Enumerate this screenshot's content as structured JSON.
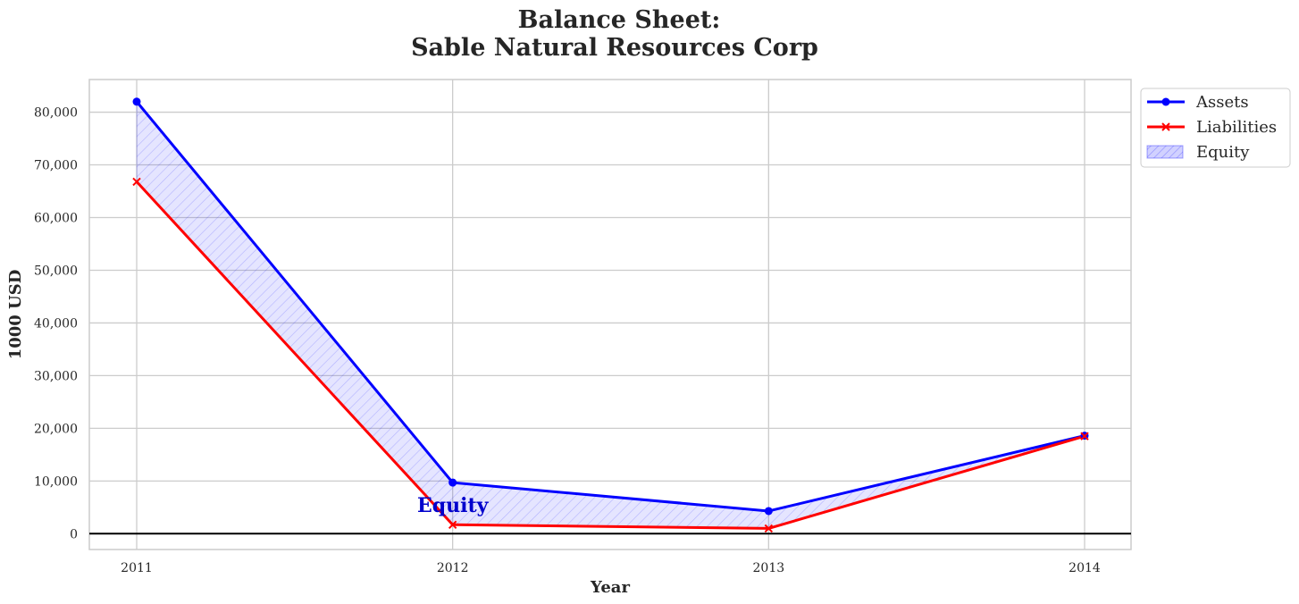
{
  "chart_data": {
    "type": "line",
    "title_line1": "Balance Sheet:",
    "title_line2": "Sable Natural Resources Corp",
    "xlabel": "Year",
    "ylabel": "1000 USD",
    "x": [
      "2011",
      "2012",
      "2013",
      "2014"
    ],
    "ylim": [
      -3000,
      86200
    ],
    "yticks": [
      0,
      10000,
      20000,
      30000,
      40000,
      50000,
      60000,
      70000,
      80000
    ],
    "ytick_labels": [
      "0",
      "10,000",
      "20,000",
      "30,000",
      "40,000",
      "50,000",
      "60,000",
      "70,000",
      "80,000"
    ],
    "grid": true,
    "legend_position": "outside-top-right",
    "series": [
      {
        "name": "Assets",
        "values": [
          82000,
          9700,
          4300,
          18600
        ],
        "color": "#0000ff",
        "marker": "circle"
      },
      {
        "name": "Liabilities",
        "values": [
          66800,
          1700,
          1000,
          18500
        ],
        "color": "#ff0000",
        "marker": "x"
      }
    ],
    "fill": {
      "name": "Equity",
      "between": [
        "Assets",
        "Liabilities"
      ],
      "color": "#0000ff",
      "hatch": "diagonal"
    },
    "annotation": {
      "text": "Equity",
      "x": "2012",
      "y": 5500,
      "color": "#0000cc"
    },
    "baseline": 0
  }
}
